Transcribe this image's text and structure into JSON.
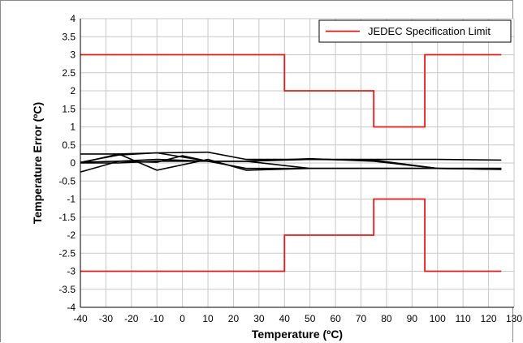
{
  "chart_data": {
    "type": "line",
    "title": "",
    "xlabel": "Temperature (ºC)",
    "ylabel": "Temperature Error (ºC)",
    "xlim": [
      -40,
      130
    ],
    "ylim": [
      -4,
      4
    ],
    "xticks": [
      -40,
      -30,
      -20,
      -10,
      0,
      10,
      20,
      30,
      40,
      50,
      60,
      70,
      80,
      90,
      100,
      110,
      120,
      130
    ],
    "yticks": [
      -4,
      -3.5,
      -3,
      -2.5,
      -2,
      -1.5,
      -1,
      -0.5,
      0,
      0.5,
      1,
      1.5,
      2,
      2.5,
      3,
      3.5,
      4
    ],
    "grid": true,
    "legend_position": "top-right",
    "series": [
      {
        "name": "JEDEC Specification Limit",
        "color": "#e31a1c",
        "x": [
          -40,
          40,
          40,
          75,
          75,
          95,
          95,
          125
        ],
        "y": [
          3,
          3,
          2,
          2,
          1,
          1,
          3,
          3
        ]
      },
      {
        "color": "#e31a1c",
        "x": [
          -40,
          40,
          40,
          75,
          75,
          95,
          95,
          125
        ],
        "y": [
          -3,
          -3,
          -2,
          -2,
          -1,
          -1,
          -3,
          -3
        ]
      },
      {
        "color": "#000000",
        "x": [
          -40,
          -25,
          -10,
          10,
          25,
          50,
          75,
          100,
          125
        ],
        "y": [
          0.25,
          0.25,
          0.28,
          0.3,
          0.1,
          0.1,
          0.1,
          0.1,
          0.08
        ]
      },
      {
        "color": "#000000",
        "x": [
          -40,
          -25,
          -10,
          10,
          25,
          50,
          75,
          100,
          125
        ],
        "y": [
          -0.25,
          0.05,
          0.1,
          0.05,
          0.05,
          0.1,
          0.08,
          -0.15,
          -0.18
        ]
      },
      {
        "color": "#000000",
        "x": [
          -40,
          -25,
          -10,
          10,
          25,
          50,
          75,
          100,
          125
        ],
        "y": [
          0,
          0.25,
          -0.2,
          0.1,
          -0.2,
          -0.15,
          -0.15,
          -0.15,
          -0.17
        ]
      },
      {
        "color": "#000000",
        "x": [
          -40,
          -25,
          -10,
          10,
          25,
          50,
          75,
          100,
          125
        ],
        "y": [
          0.02,
          0.22,
          0.28,
          0.05,
          -0.15,
          -0.15,
          -0.15,
          -0.15,
          -0.17
        ]
      },
      {
        "color": "#000000",
        "x": [
          -40,
          -25,
          -10,
          10,
          25,
          50,
          75,
          100,
          125
        ],
        "y": [
          0,
          0,
          0.05,
          0.05,
          0.05,
          0.12,
          0.05,
          -0.15,
          -0.15
        ]
      },
      {
        "color": "#000000",
        "x": [
          -40,
          -25,
          -10,
          0,
          10,
          25,
          50,
          75,
          100,
          125
        ],
        "y": [
          0.02,
          0.05,
          0.02,
          0.2,
          0.05,
          0.05,
          -0.15,
          -0.15,
          -0.15,
          -0.15
        ]
      }
    ]
  }
}
